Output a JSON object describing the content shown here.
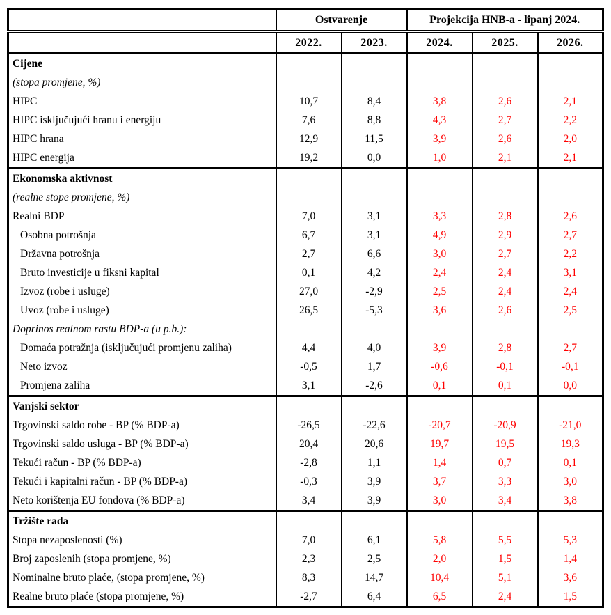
{
  "header": {
    "group_ostvarenje": "Ostvarenje",
    "group_projekcija": "Projekcija HNB-a - lipanj 2024.",
    "years": [
      "2022.",
      "2023.",
      "2024.",
      "2025.",
      "2026."
    ],
    "actual_year_count": 2,
    "projection_year_count": 3
  },
  "colors": {
    "actual_text": "#000000",
    "projection_text": "#ff0000",
    "border": "#000000",
    "background": "#ffffff"
  },
  "rows": [
    {
      "label": "Cijene",
      "style": "section",
      "section_start": true,
      "values": null
    },
    {
      "label": "(stopa promjene, %)",
      "style": "italic",
      "section_start": false,
      "values": null
    },
    {
      "label": "HIPC",
      "style": "normal",
      "section_start": false,
      "values": [
        "10,7",
        "8,4",
        "3,8",
        "2,6",
        "2,1"
      ]
    },
    {
      "label": "HIPC isključujući hranu i energiju",
      "style": "normal",
      "section_start": false,
      "values": [
        "7,6",
        "8,8",
        "4,3",
        "2,7",
        "2,2"
      ]
    },
    {
      "label": "HIPC hrana",
      "style": "normal",
      "section_start": false,
      "values": [
        "12,9",
        "11,5",
        "3,9",
        "2,6",
        "2,0"
      ]
    },
    {
      "label": "HIPC energija",
      "style": "normal",
      "section_start": false,
      "values": [
        "19,2",
        "0,0",
        "1,0",
        "2,1",
        "2,1"
      ]
    },
    {
      "label": "Ekonomska aktivnost",
      "style": "section",
      "section_start": true,
      "values": null
    },
    {
      "label": "(realne stope promjene, %)",
      "style": "italic",
      "section_start": false,
      "values": null
    },
    {
      "label": "Realni BDP",
      "style": "normal",
      "section_start": false,
      "values": [
        "7,0",
        "3,1",
        "3,3",
        "2,8",
        "2,6"
      ]
    },
    {
      "label": "Osobna potrošnja",
      "style": "indent",
      "section_start": false,
      "values": [
        "6,7",
        "3,1",
        "4,9",
        "2,9",
        "2,7"
      ]
    },
    {
      "label": "Državna potrošnja",
      "style": "indent",
      "section_start": false,
      "values": [
        "2,7",
        "6,6",
        "3,0",
        "2,7",
        "2,2"
      ]
    },
    {
      "label": "Bruto investicije u fiksni kapital",
      "style": "indent",
      "section_start": false,
      "values": [
        "0,1",
        "4,2",
        "2,4",
        "2,4",
        "3,1"
      ]
    },
    {
      "label": "Izvoz (robe i usluge)",
      "style": "indent",
      "section_start": false,
      "values": [
        "27,0",
        "-2,9",
        "2,5",
        "2,4",
        "2,4"
      ]
    },
    {
      "label": "Uvoz (robe i usluge)",
      "style": "indent",
      "section_start": false,
      "values": [
        "26,5",
        "-5,3",
        "3,6",
        "2,6",
        "2,5"
      ]
    },
    {
      "label": "Doprinos realnom rastu BDP-a (u p.b.):",
      "style": "italic",
      "section_start": false,
      "values": null
    },
    {
      "label": "Domaća potražnja (isključujući promjenu zaliha)",
      "style": "indent",
      "section_start": false,
      "values": [
        "4,4",
        "4,0",
        "3,9",
        "2,8",
        "2,7"
      ]
    },
    {
      "label": "Neto izvoz",
      "style": "indent",
      "section_start": false,
      "values": [
        "-0,5",
        "1,7",
        "-0,6",
        "-0,1",
        "-0,1"
      ]
    },
    {
      "label": "Promjena zaliha",
      "style": "indent",
      "section_start": false,
      "values": [
        "3,1",
        "-2,6",
        "0,1",
        "0,1",
        "0,0"
      ]
    },
    {
      "label": "Vanjski sektor",
      "style": "section",
      "section_start": true,
      "values": null
    },
    {
      "label": "Trgovinski saldo robe - BP (% BDP-a)",
      "style": "normal",
      "section_start": false,
      "values": [
        "-26,5",
        "-22,6",
        "-20,7",
        "-20,9",
        "-21,0"
      ]
    },
    {
      "label": "Trgovinski saldo usluga - BP (% BDP-a)",
      "style": "normal",
      "section_start": false,
      "values": [
        "20,4",
        "20,6",
        "19,7",
        "19,5",
        "19,3"
      ]
    },
    {
      "label": "Tekući račun - BP (% BDP-a)",
      "style": "normal",
      "section_start": false,
      "values": [
        "-2,8",
        "1,1",
        "1,4",
        "0,7",
        "0,1"
      ]
    },
    {
      "label": "Tekući i kapitalni račun - BP (% BDP-a)",
      "style": "normal",
      "section_start": false,
      "values": [
        "-0,3",
        "3,9",
        "3,7",
        "3,3",
        "3,0"
      ]
    },
    {
      "label": "Neto korištenja EU fondova (% BDP-a)",
      "style": "normal",
      "section_start": false,
      "values": [
        "3,4",
        "3,9",
        "3,0",
        "3,4",
        "3,8"
      ]
    },
    {
      "label": "Tržište rada",
      "style": "section",
      "section_start": true,
      "values": null
    },
    {
      "label": "Stopa nezaposlenosti (%)",
      "style": "normal",
      "section_start": false,
      "values": [
        "7,0",
        "6,1",
        "5,8",
        "5,5",
        "5,3"
      ]
    },
    {
      "label": "Broj zaposlenih (stopa promjene, %)",
      "style": "normal",
      "section_start": false,
      "values": [
        "2,3",
        "2,5",
        "2,0",
        "1,5",
        "1,4"
      ]
    },
    {
      "label": "Nominalne bruto plaće, (stopa promjene, %)",
      "style": "normal",
      "section_start": false,
      "values": [
        "8,3",
        "14,7",
        "10,4",
        "5,1",
        "3,6"
      ]
    },
    {
      "label": "Realne bruto plaće (stopa promjene, %)",
      "style": "normal",
      "section_start": false,
      "values": [
        "-2,7",
        "6,4",
        "6,5",
        "2,4",
        "1,5"
      ]
    }
  ]
}
